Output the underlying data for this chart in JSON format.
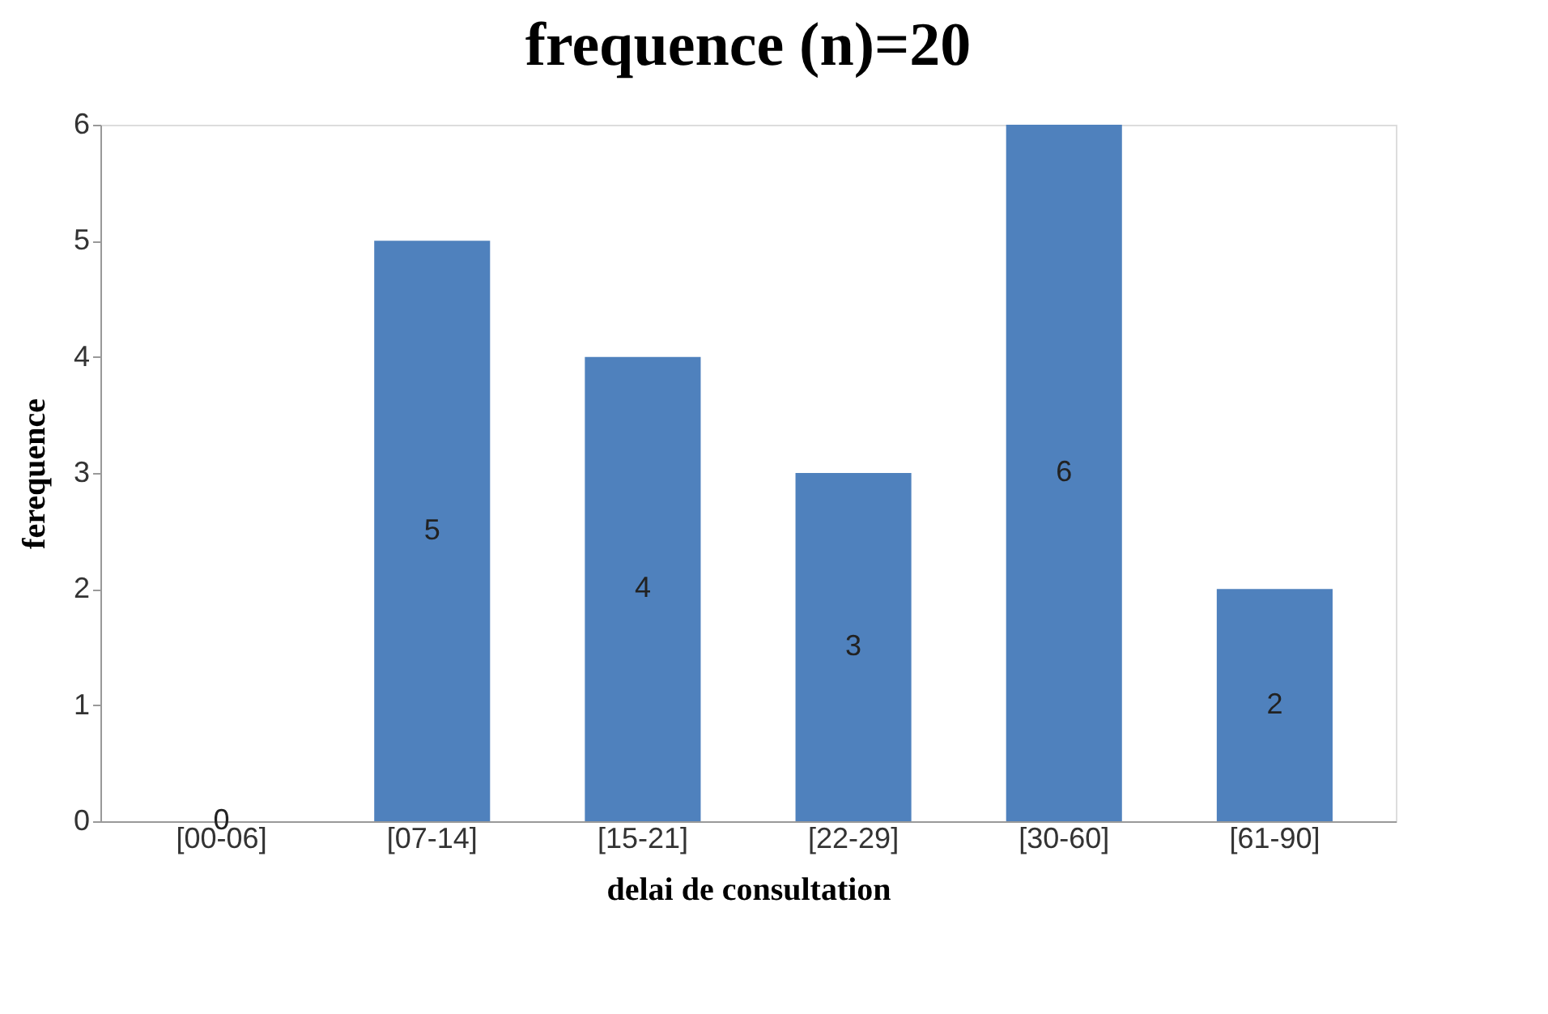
{
  "chart_data": {
    "type": "bar",
    "title": "frequence (n)=20",
    "xlabel": "delai de consultation",
    "ylabel": "ferequence",
    "categories": [
      "[00-06]",
      "[07-14]",
      "[15-21]",
      "[22-29]",
      "[30-60]",
      "[61-90]"
    ],
    "values": [
      0,
      5,
      4,
      3,
      6,
      2
    ],
    "color": "#4f81bd",
    "ylim": [
      0,
      6
    ],
    "yticks": [
      0,
      1,
      2,
      3,
      4,
      5,
      6
    ],
    "grid": false,
    "data_labels": true
  }
}
